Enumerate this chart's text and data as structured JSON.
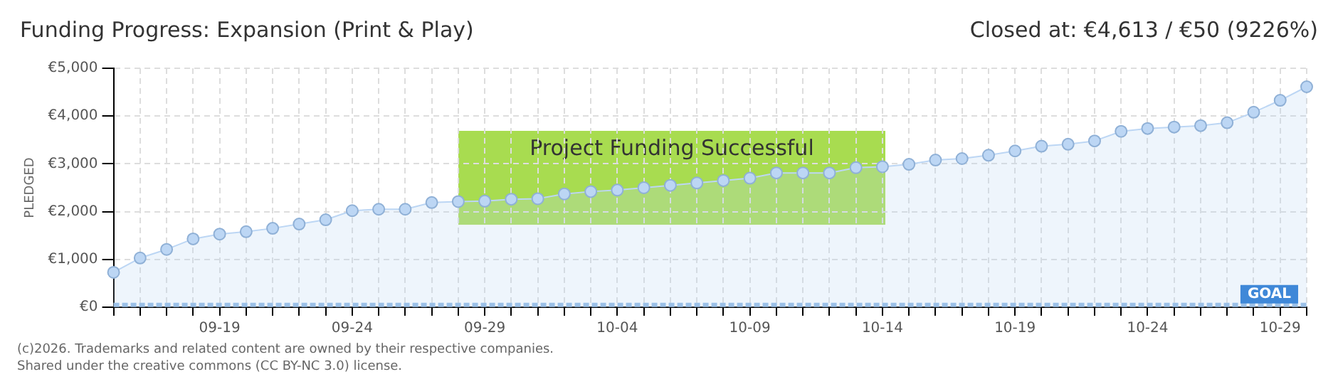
{
  "chart_data": {
    "type": "area",
    "title": "Funding Progress: Expansion (Print & Play)",
    "subtitle": "Closed at:  €4,613 /  €50 (9226%)",
    "ylabel": "PLEDGED",
    "annotations": [
      "Project Funding Successful",
      "(c)2026. Trademarks and related content are owned by their respective companies.",
      "Shared under the creative commons (CC BY-NC 3.0) license."
    ],
    "categories": [
      null,
      null,
      null,
      null,
      "09-19",
      null,
      null,
      null,
      null,
      "09-24",
      null,
      null,
      null,
      null,
      "09-29",
      null,
      null,
      null,
      null,
      "10-04",
      null,
      null,
      null,
      null,
      "10-09",
      null,
      null,
      null,
      null,
      "10-14",
      null,
      null,
      null,
      null,
      "10-19",
      null,
      null,
      null,
      null,
      "10-24",
      null,
      null,
      null,
      null,
      "10-29",
      null
    ],
    "series": [
      {
        "color": "#bcd6f4",
        "values": [
          730,
          1030,
          1210,
          1430,
          1530,
          1580,
          1650,
          1740,
          1830,
          2020,
          2050,
          2050,
          2190,
          2210,
          2220,
          2260,
          2270,
          2370,
          2420,
          2450,
          2500,
          2550,
          2600,
          2650,
          2700,
          2810,
          2810,
          2810,
          2920,
          2940,
          2990,
          3080,
          3110,
          3180,
          3270,
          3370,
          3410,
          3480,
          3680,
          3740,
          3770,
          3800,
          3860,
          4080,
          4330,
          4613
        ]
      }
    ],
    "ylim": [
      0,
      5000
    ],
    "yticks": [
      {
        "value": 0,
        "label": "€0"
      },
      {
        "value": 1000,
        "label": "€1,000"
      },
      {
        "value": 2000,
        "label": "€2,000"
      },
      {
        "value": 3000,
        "label": "€3,000"
      },
      {
        "value": 4000,
        "label": "€4,000"
      },
      {
        "value": 5000,
        "label": "€5,000"
      }
    ],
    "ref_lines": [
      {
        "axis": "y",
        "value": 50,
        "label": "GOAL",
        "color": "#9cc1e8",
        "line_style": "dashed"
      }
    ],
    "grid": true,
    "marker": "circle",
    "legend": false
  }
}
